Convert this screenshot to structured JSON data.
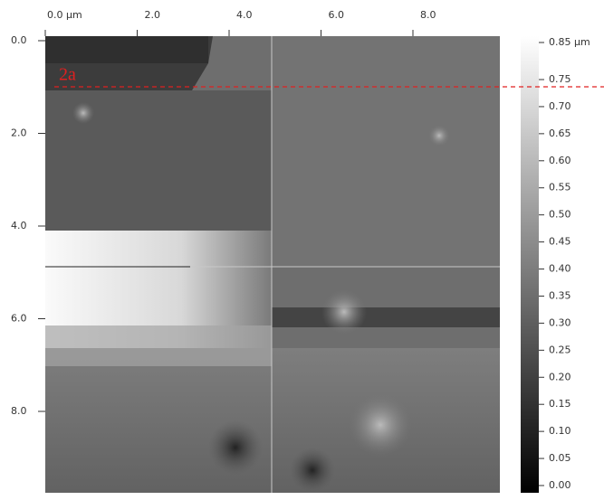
{
  "top_axis": {
    "labels": [
      "0.0 µm",
      "2.0",
      "4.0",
      "6.0",
      "8.0"
    ]
  },
  "left_axis": {
    "labels": [
      "0.0",
      "2.0",
      "4.0",
      "6.0",
      "8.0"
    ]
  },
  "colorbar": {
    "labels": [
      "0.85 µm",
      "0.75",
      "0.70",
      "0.65",
      "0.60",
      "0.55",
      "0.50",
      "0.45",
      "0.40",
      "0.35",
      "0.30",
      "0.25",
      "0.20",
      "0.15",
      "0.10",
      "0.05",
      "0.00"
    ]
  },
  "annotation": "2a"
}
